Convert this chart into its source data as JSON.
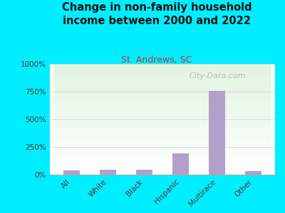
{
  "title": "Change in non-family household\nincome between 2000 and 2022",
  "subtitle": "St. Andrews, SC",
  "categories": [
    "All",
    "White",
    "Black",
    "Hispanic",
    "Multirace",
    "Other"
  ],
  "values": [
    38,
    45,
    43,
    195,
    755,
    32
  ],
  "bar_color": "#b3a0c8",
  "background_outer": "#00eeff",
  "background_plot": "#f0f8e8",
  "title_color": "#111111",
  "subtitle_color": "#cc3333",
  "ytick_color": "#553333",
  "xtick_color": "#553333",
  "ylim": [
    0,
    1000
  ],
  "yticks": [
    0,
    250,
    500,
    750,
    1000
  ],
  "ytick_labels": [
    "0%",
    "250%",
    "500%",
    "750%",
    "1000%"
  ],
  "watermark": "City-Data.com",
  "title_fontsize": 10.5,
  "subtitle_fontsize": 9,
  "tick_fontsize": 7.5,
  "watermark_fontsize": 8
}
